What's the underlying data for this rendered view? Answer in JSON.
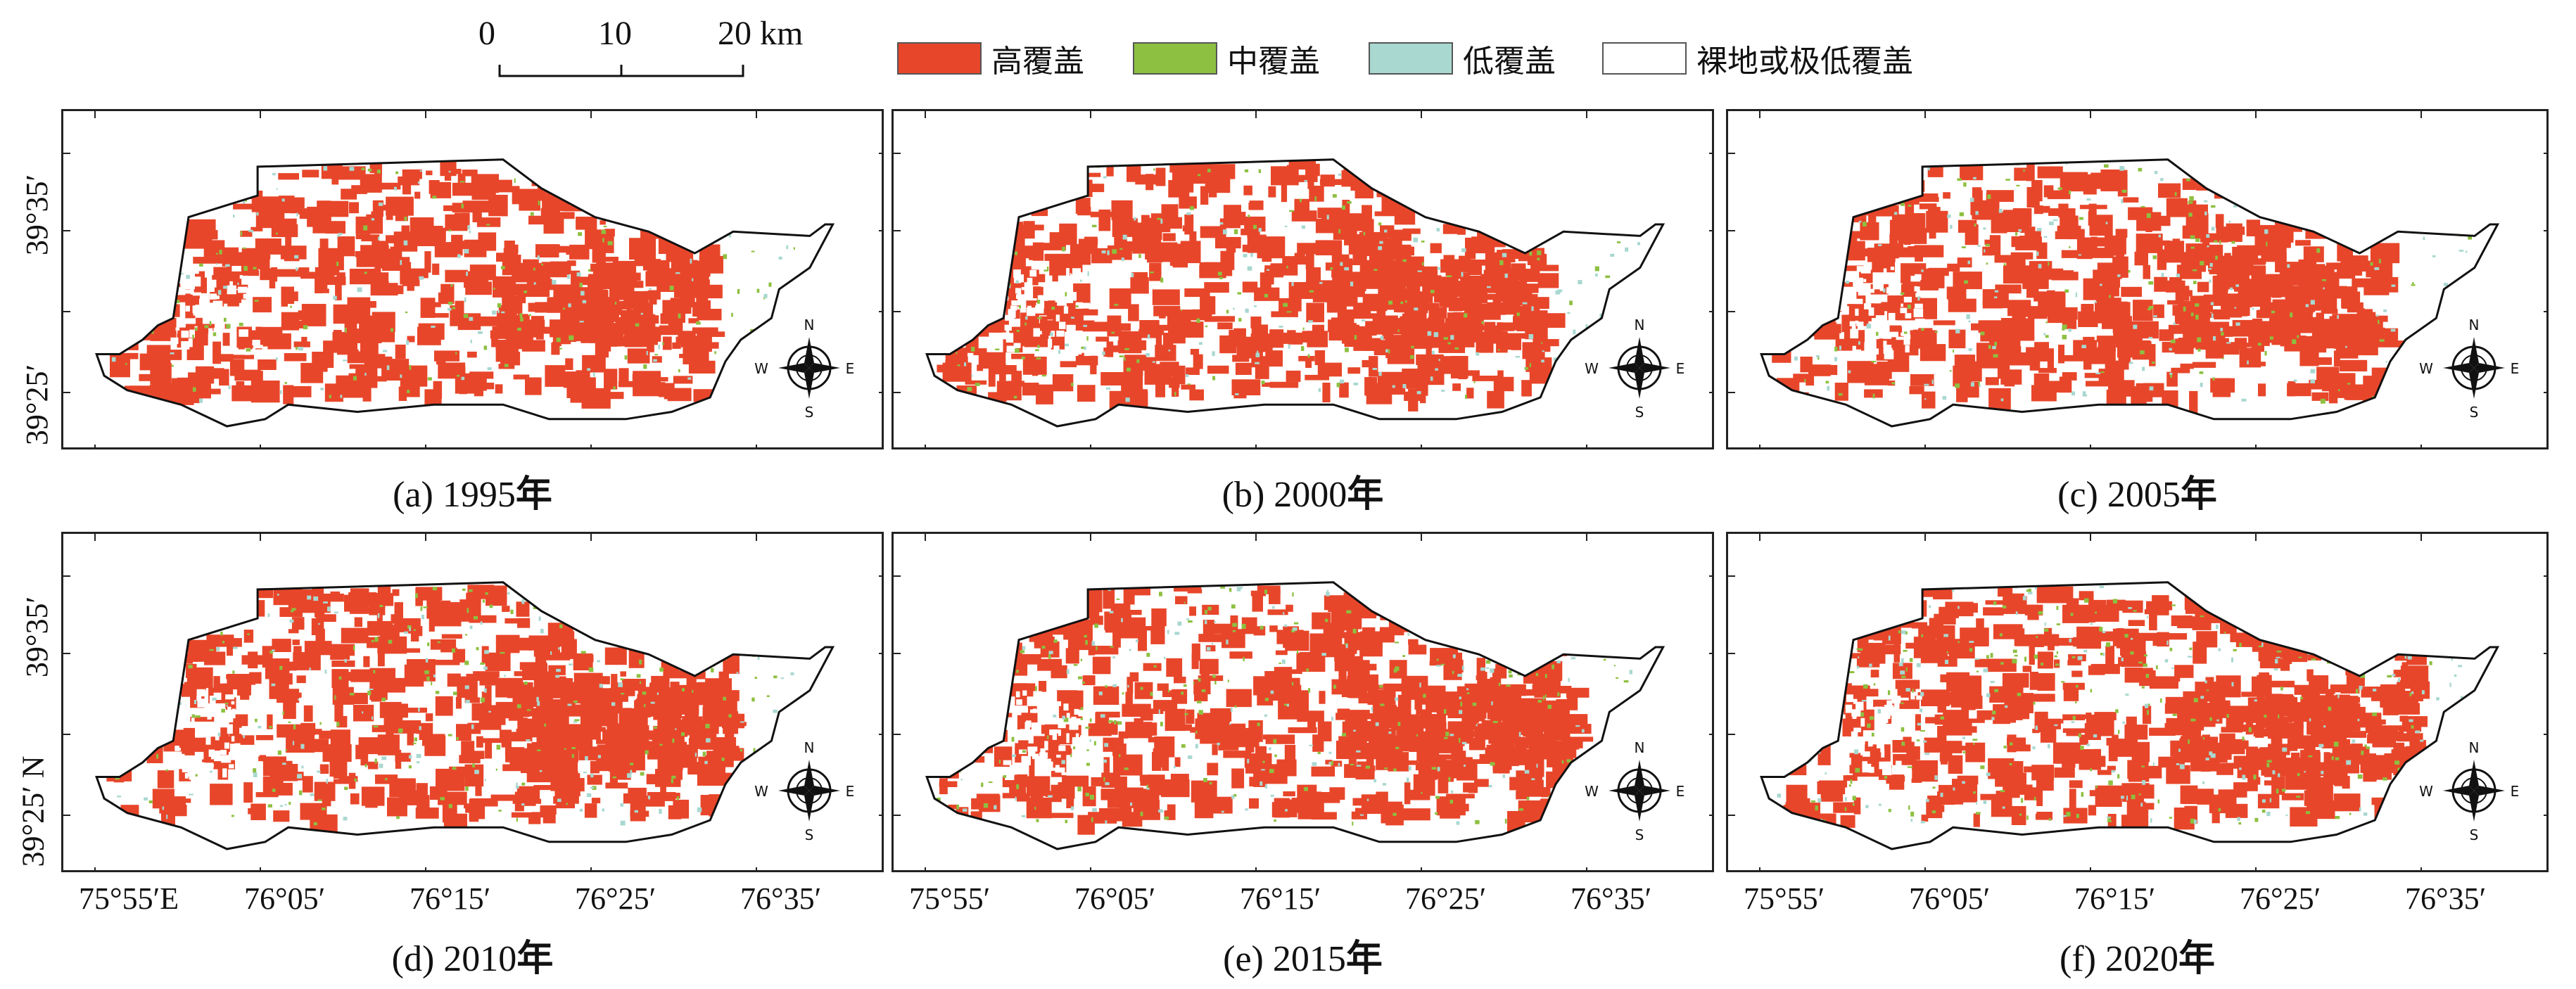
{
  "scale_bar": {
    "ticks": [
      "0",
      "10",
      "20"
    ],
    "unit": "km"
  },
  "legend": [
    {
      "label": "高覆盖",
      "color": "#e8462a"
    },
    {
      "label": "中覆盖",
      "color": "#8dc040"
    },
    {
      "label": "低覆盖",
      "color": "#a8d8d0"
    },
    {
      "label": "裸地或极低覆盖",
      "color": "#ffffff"
    }
  ],
  "panels": [
    {
      "tag": "(a) 1995",
      "suffix": "年",
      "high": 0.55,
      "mid": 0.08,
      "low": 0.07
    },
    {
      "tag": "(b) 2000",
      "suffix": "年",
      "high": 0.57,
      "mid": 0.09,
      "low": 0.08
    },
    {
      "tag": "(c) 2005",
      "suffix": "年",
      "high": 0.58,
      "mid": 0.09,
      "low": 0.09
    },
    {
      "tag": "(d) 2010",
      "suffix": "年",
      "high": 0.62,
      "mid": 0.12,
      "low": 0.09
    },
    {
      "tag": "(e) 2015",
      "suffix": "年",
      "high": 0.65,
      "mid": 0.13,
      "low": 0.1
    },
    {
      "tag": "(f) 2020",
      "suffix": "年",
      "high": 0.68,
      "mid": 0.14,
      "low": 0.11
    }
  ],
  "lat_labels": {
    "top_row": [
      "39°35′",
      "39°25′"
    ],
    "bottom_row": [
      "39°35′",
      "39°25′ N"
    ]
  },
  "lon_labels": [
    [
      "75°55′E",
      "76°05′",
      "76°15′",
      "76°25′",
      "76°35′"
    ],
    [
      "75°55′",
      "76°05′",
      "76°15′",
      "76°25′",
      "76°35′"
    ],
    [
      "75°55′",
      "76°05′",
      "76°15′",
      "76°25′",
      "76°35′"
    ]
  ],
  "compass": {
    "n": "N",
    "s": "S",
    "e": "E",
    "w": "W"
  },
  "colors": {
    "high": "#e8462a",
    "mid": "#8dc040",
    "low": "#a8d8d0",
    "outline": "#111111"
  }
}
